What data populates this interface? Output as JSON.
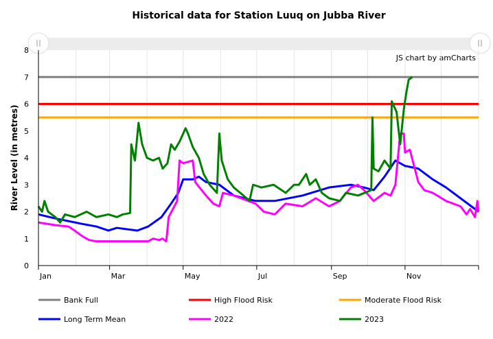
{
  "chart_data": {
    "type": "line",
    "title": "Historical data for Station Luuq on Jubba River",
    "ylabel": "River Level (in metres)",
    "xlabel": "",
    "ylim": [
      0,
      8
    ],
    "yticks": [
      "0",
      "1",
      "2",
      "3",
      "4",
      "5",
      "6",
      "7",
      "8"
    ],
    "xlim_days": [
      0,
      365
    ],
    "xticks": [
      {
        "label": "Jan",
        "day": 0
      },
      {
        "label": "Mar",
        "day": 59
      },
      {
        "label": "May",
        "day": 120
      },
      {
        "label": "Jul",
        "day": 181
      },
      {
        "label": "Sep",
        "day": 243
      },
      {
        "label": "Nov",
        "day": 304
      }
    ],
    "credit": "JS chart by amCharts",
    "grid": "vertical monthly",
    "legend_position": "bottom",
    "thresholds": [
      {
        "name": "Bank Full",
        "value": 7,
        "color": "#808080"
      },
      {
        "name": "High Flood Risk",
        "value": 6,
        "color": "#ff0000"
      },
      {
        "name": "Moderate Flood Risk",
        "value": 5.5,
        "color": "#ffa500"
      }
    ],
    "series": [
      {
        "name": "Long Term Mean",
        "color": "#0000ff",
        "points": [
          [
            0,
            1.9
          ],
          [
            14,
            1.75
          ],
          [
            25,
            1.65
          ],
          [
            36,
            1.55
          ],
          [
            48,
            1.45
          ],
          [
            58,
            1.3
          ],
          [
            65,
            1.4
          ],
          [
            82,
            1.3
          ],
          [
            91,
            1.45
          ],
          [
            102,
            1.8
          ],
          [
            110,
            2.3
          ],
          [
            116,
            2.7
          ],
          [
            120,
            3.2
          ],
          [
            128,
            3.2
          ],
          [
            133,
            3.3
          ],
          [
            139,
            3.1
          ],
          [
            150,
            3.0
          ],
          [
            162,
            2.6
          ],
          [
            180,
            2.4
          ],
          [
            196,
            2.4
          ],
          [
            219,
            2.6
          ],
          [
            241,
            2.9
          ],
          [
            259,
            3.0
          ],
          [
            270,
            2.9
          ],
          [
            278,
            2.8
          ],
          [
            287,
            3.3
          ],
          [
            296,
            3.9
          ],
          [
            304,
            3.7
          ],
          [
            315,
            3.6
          ],
          [
            327,
            3.2
          ],
          [
            338,
            2.9
          ],
          [
            350,
            2.5
          ],
          [
            365,
            2.0
          ]
        ]
      },
      {
        "name": "2022",
        "color": "#ff00ff",
        "points": [
          [
            0,
            1.6
          ],
          [
            14,
            1.5
          ],
          [
            25,
            1.45
          ],
          [
            30,
            1.3
          ],
          [
            36,
            1.1
          ],
          [
            42,
            0.95
          ],
          [
            48,
            0.9
          ],
          [
            58,
            0.9
          ],
          [
            82,
            0.9
          ],
          [
            91,
            0.9
          ],
          [
            95,
            1.0
          ],
          [
            100,
            0.95
          ],
          [
            103,
            1.0
          ],
          [
            106,
            0.9
          ],
          [
            108,
            1.8
          ],
          [
            115,
            2.4
          ],
          [
            117,
            3.9
          ],
          [
            120,
            3.8
          ],
          [
            128,
            3.9
          ],
          [
            130,
            3.1
          ],
          [
            139,
            2.6
          ],
          [
            145,
            2.3
          ],
          [
            150,
            2.2
          ],
          [
            153,
            2.7
          ],
          [
            162,
            2.6
          ],
          [
            180,
            2.3
          ],
          [
            187,
            2.0
          ],
          [
            196,
            1.9
          ],
          [
            205,
            2.3
          ],
          [
            219,
            2.2
          ],
          [
            230,
            2.5
          ],
          [
            241,
            2.2
          ],
          [
            250,
            2.4
          ],
          [
            259,
            2.9
          ],
          [
            265,
            3.0
          ],
          [
            270,
            2.8
          ],
          [
            278,
            2.4
          ],
          [
            287,
            2.7
          ],
          [
            292,
            2.6
          ],
          [
            296,
            3.0
          ],
          [
            300,
            4.9
          ],
          [
            303,
            4.9
          ],
          [
            304,
            4.2
          ],
          [
            308,
            4.3
          ],
          [
            315,
            3.1
          ],
          [
            320,
            2.8
          ],
          [
            327,
            2.7
          ],
          [
            338,
            2.4
          ],
          [
            350,
            2.2
          ],
          [
            355,
            1.9
          ],
          [
            358,
            2.1
          ],
          [
            362,
            1.8
          ],
          [
            364,
            2.4
          ],
          [
            365,
            2.0
          ]
        ]
      },
      {
        "name": "2023",
        "color": "#008000",
        "points": [
          [
            0,
            2.2
          ],
          [
            3,
            2.0
          ],
          [
            5,
            2.4
          ],
          [
            8,
            2.0
          ],
          [
            14,
            1.8
          ],
          [
            18,
            1.6
          ],
          [
            22,
            1.9
          ],
          [
            30,
            1.8
          ],
          [
            40,
            2.0
          ],
          [
            48,
            1.8
          ],
          [
            58,
            1.9
          ],
          [
            65,
            1.8
          ],
          [
            70,
            1.9
          ],
          [
            76,
            1.95
          ],
          [
            77,
            4.5
          ],
          [
            80,
            3.9
          ],
          [
            83,
            5.3
          ],
          [
            86,
            4.5
          ],
          [
            90,
            4.0
          ],
          [
            95,
            3.9
          ],
          [
            100,
            4.0
          ],
          [
            103,
            3.6
          ],
          [
            107,
            3.8
          ],
          [
            110,
            4.5
          ],
          [
            113,
            4.3
          ],
          [
            117,
            4.6
          ],
          [
            122,
            5.1
          ],
          [
            124,
            4.9
          ],
          [
            128,
            4.4
          ],
          [
            133,
            4.0
          ],
          [
            137,
            3.4
          ],
          [
            142,
            3.0
          ],
          [
            148,
            2.7
          ],
          [
            150,
            4.9
          ],
          [
            152,
            3.9
          ],
          [
            157,
            3.2
          ],
          [
            162,
            2.9
          ],
          [
            170,
            2.6
          ],
          [
            175,
            2.4
          ],
          [
            178,
            3.0
          ],
          [
            185,
            2.9
          ],
          [
            195,
            3.0
          ],
          [
            205,
            2.7
          ],
          [
            212,
            3.0
          ],
          [
            216,
            3.0
          ],
          [
            222,
            3.4
          ],
          [
            225,
            3.0
          ],
          [
            230,
            3.2
          ],
          [
            235,
            2.7
          ],
          [
            241,
            2.5
          ],
          [
            250,
            2.4
          ],
          [
            255,
            2.7
          ],
          [
            265,
            2.6
          ],
          [
            276,
            2.8
          ],
          [
            277,
            5.5
          ],
          [
            278,
            3.6
          ],
          [
            282,
            3.5
          ],
          [
            287,
            3.9
          ],
          [
            292,
            3.6
          ],
          [
            293,
            6.1
          ],
          [
            297,
            5.7
          ],
          [
            300,
            4.5
          ],
          [
            303,
            5.8
          ],
          [
            305,
            6.4
          ],
          [
            307,
            6.9
          ],
          [
            310,
            7.0
          ]
        ]
      }
    ]
  }
}
